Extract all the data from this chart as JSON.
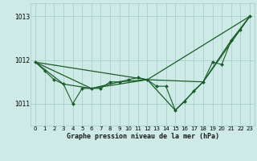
{
  "background_color": "#ceeae6",
  "grid_color": "#aacfcb",
  "line_color": "#1a5c2a",
  "title": "Graphe pression niveau de la mer (hPa)",
  "xlim": [
    -0.5,
    23.5
  ],
  "ylim": [
    1010.5,
    1013.3
  ],
  "yticks": [
    1011,
    1012,
    1013
  ],
  "xticks": [
    0,
    1,
    2,
    3,
    4,
    5,
    6,
    7,
    8,
    9,
    10,
    11,
    12,
    13,
    14,
    15,
    16,
    17,
    18,
    19,
    20,
    21,
    22,
    23
  ],
  "series": [
    {
      "x": [
        0,
        1,
        2,
        3,
        4,
        5,
        6,
        7,
        8,
        9,
        10,
        11,
        12,
        13,
        14,
        15,
        16,
        17,
        18,
        19,
        20,
        21,
        22,
        23
      ],
      "y": [
        1011.95,
        1011.75,
        1011.55,
        1011.45,
        1011.0,
        1011.35,
        1011.35,
        1011.35,
        1011.5,
        1011.5,
        1011.55,
        1011.6,
        1011.55,
        1011.4,
        1011.4,
        1010.85,
        1011.05,
        1011.3,
        1011.5,
        1011.95,
        1011.9,
        1012.45,
        1012.7,
        1013.0
      ],
      "marker": "D",
      "markersize": 2.0,
      "linewidth": 0.8,
      "linestyle": "-"
    },
    {
      "x": [
        0,
        3,
        6,
        9,
        12,
        15,
        18,
        21,
        23
      ],
      "y": [
        1011.95,
        1011.45,
        1011.35,
        1011.5,
        1011.55,
        1010.85,
        1011.5,
        1012.45,
        1013.0
      ],
      "marker": null,
      "markersize": 0,
      "linewidth": 0.9,
      "linestyle": "-"
    },
    {
      "x": [
        0,
        6,
        12,
        18,
        23
      ],
      "y": [
        1011.95,
        1011.35,
        1011.55,
        1011.5,
        1013.0
      ],
      "marker": null,
      "markersize": 0,
      "linewidth": 0.9,
      "linestyle": "-"
    },
    {
      "x": [
        0,
        12,
        23
      ],
      "y": [
        1011.95,
        1011.55,
        1013.0
      ],
      "marker": null,
      "markersize": 0,
      "linewidth": 0.9,
      "linestyle": "-"
    }
  ]
}
